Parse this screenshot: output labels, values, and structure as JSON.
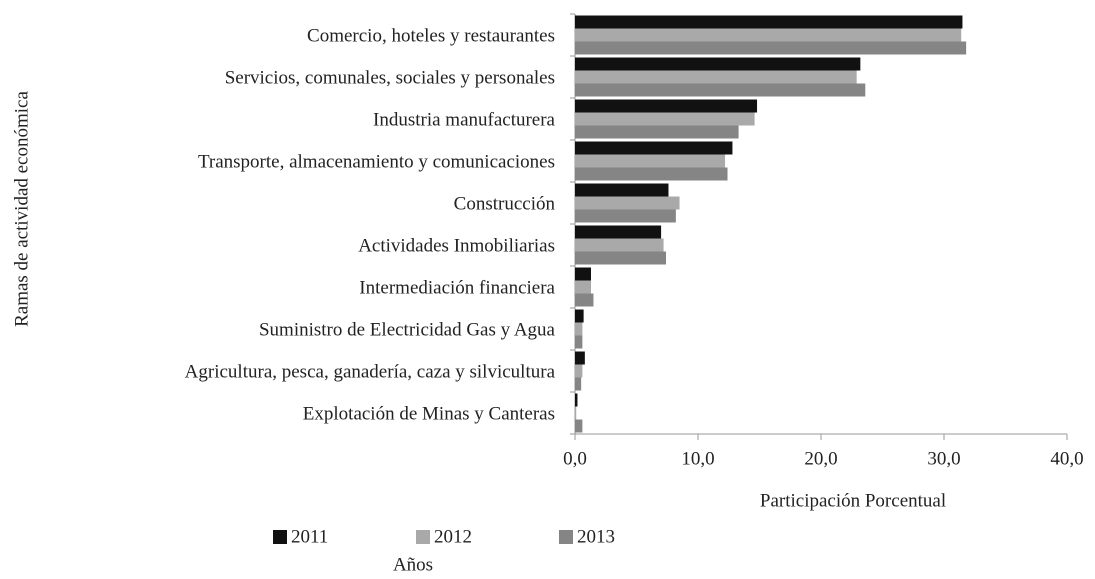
{
  "chart_data": {
    "type": "bar",
    "orientation": "horizontal",
    "x_label": "Participación Porcentual",
    "y_label": "Ramas de actividad económica",
    "legend_title": "Años",
    "categories": [
      "Comercio, hoteles y restaurantes",
      "Servicios, comunales, sociales y personales",
      "Industria manufacturera",
      "Transporte, almacenamiento y comunicaciones",
      "Construcción",
      "Actividades Inmobiliarias",
      "Intermediación financiera",
      "Suministro de Electricidad Gas y Agua",
      "Agricultura, pesca, ganadería, caza y silvicultura",
      "Explotación de Minas y Canteras"
    ],
    "series": [
      {
        "name": "2011",
        "color": "#111111",
        "values": [
          31.5,
          23.2,
          14.8,
          12.8,
          7.6,
          7.0,
          1.3,
          0.7,
          0.8,
          0.2
        ]
      },
      {
        "name": "2012",
        "color": "#a9a9a9",
        "values": [
          31.4,
          22.9,
          14.6,
          12.2,
          8.5,
          7.2,
          1.3,
          0.6,
          0.6,
          0.1
        ]
      },
      {
        "name": "2013",
        "color": "#858585",
        "values": [
          31.8,
          23.6,
          13.3,
          12.4,
          8.2,
          7.4,
          1.5,
          0.6,
          0.5,
          0.6
        ]
      }
    ],
    "xlim": [
      0,
      40
    ],
    "xticks": [
      {
        "value": 0,
        "label": "0,0"
      },
      {
        "value": 10,
        "label": "10,0"
      },
      {
        "value": 20,
        "label": "20,0"
      },
      {
        "value": 30,
        "label": "30,0"
      },
      {
        "value": 40,
        "label": "40,0"
      }
    ],
    "legend": "bottom"
  }
}
